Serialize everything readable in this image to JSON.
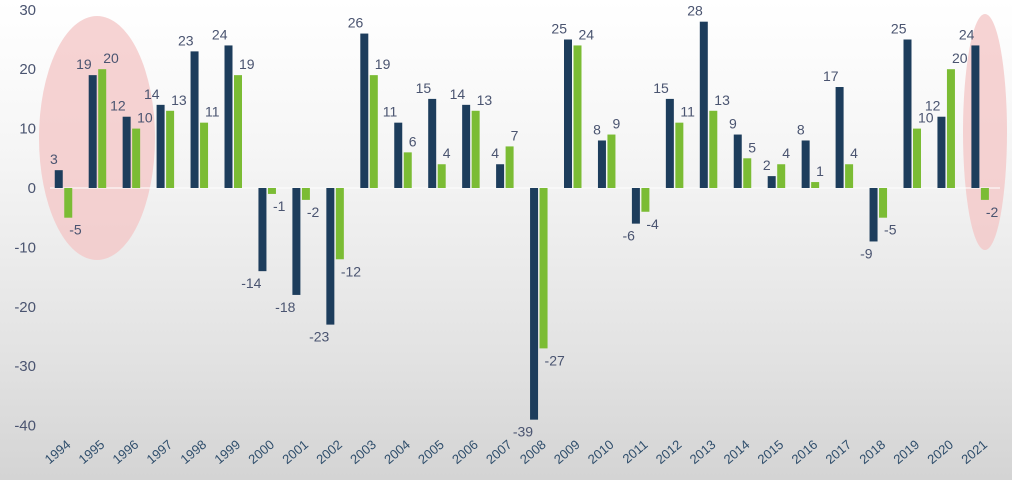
{
  "chart_data": {
    "type": "bar",
    "categories": [
      "1994",
      "1995",
      "1996",
      "1997",
      "1998",
      "1999",
      "2000",
      "2001",
      "2002",
      "2003",
      "2004",
      "2005",
      "2006",
      "2007",
      "2008",
      "2009",
      "2010",
      "2011",
      "2012",
      "2013",
      "2014",
      "2015",
      "2016",
      "2017",
      "2018",
      "2019",
      "2020",
      "2021"
    ],
    "series": [
      {
        "values": [
          3,
          19,
          12,
          14,
          23,
          24,
          -14,
          -18,
          -23,
          26,
          11,
          15,
          14,
          4,
          -39,
          25,
          8,
          -6,
          15,
          28,
          9,
          2,
          8,
          17,
          -9,
          25,
          12,
          24
        ]
      },
      {
        "values": [
          -5,
          20,
          10,
          13,
          11,
          19,
          -1,
          -2,
          -12,
          19,
          6,
          4,
          13,
          7,
          -27,
          24,
          9,
          -4,
          11,
          13,
          5,
          4,
          1,
          4,
          -5,
          10,
          20,
          -2
        ]
      }
    ],
    "data_labels": [
      [
        "3",
        "-5"
      ],
      [
        "19",
        "20"
      ],
      [
        "12",
        "10"
      ],
      [
        "14",
        "13"
      ],
      [
        "23",
        "11"
      ],
      [
        "24",
        "19"
      ],
      [
        "-14",
        "-1"
      ],
      [
        "-18",
        "-2"
      ],
      [
        "-23",
        "-12"
      ],
      [
        "26",
        "19"
      ],
      [
        "11",
        "6"
      ],
      [
        "15",
        "4"
      ],
      [
        "14",
        "13"
      ],
      [
        "4",
        "7"
      ],
      [
        "-39",
        "-27"
      ],
      [
        "25",
        "24"
      ],
      [
        "8",
        "9"
      ],
      [
        "-6",
        "-4"
      ],
      [
        "15",
        "11"
      ],
      [
        "28",
        "13"
      ],
      [
        "9",
        "5"
      ],
      [
        "2",
        "4"
      ],
      [
        "8",
        "1"
      ],
      [
        "17",
        "4"
      ],
      [
        "-9",
        "-5"
      ],
      [
        "25",
        "10"
      ],
      [
        "12",
        "20"
      ],
      [
        "24",
        "-2"
      ]
    ],
    "yticks": [
      30,
      20,
      10,
      0,
      -10,
      -20,
      -30,
      -40
    ],
    "ylim": [
      -40,
      30
    ],
    "grid": false,
    "title": "",
    "xlabel": "",
    "ylabel": "",
    "highlights": [
      {
        "categories": [
          "1994",
          "1995",
          "1996"
        ]
      },
      {
        "categories": [
          "2021"
        ]
      }
    ],
    "colors": {
      "series1": "#1d3d5c",
      "series2": "#7bbc34",
      "highlight": "#f4c6c6",
      "tick": "#4a5470",
      "xtick": "#2e4d6b"
    }
  }
}
